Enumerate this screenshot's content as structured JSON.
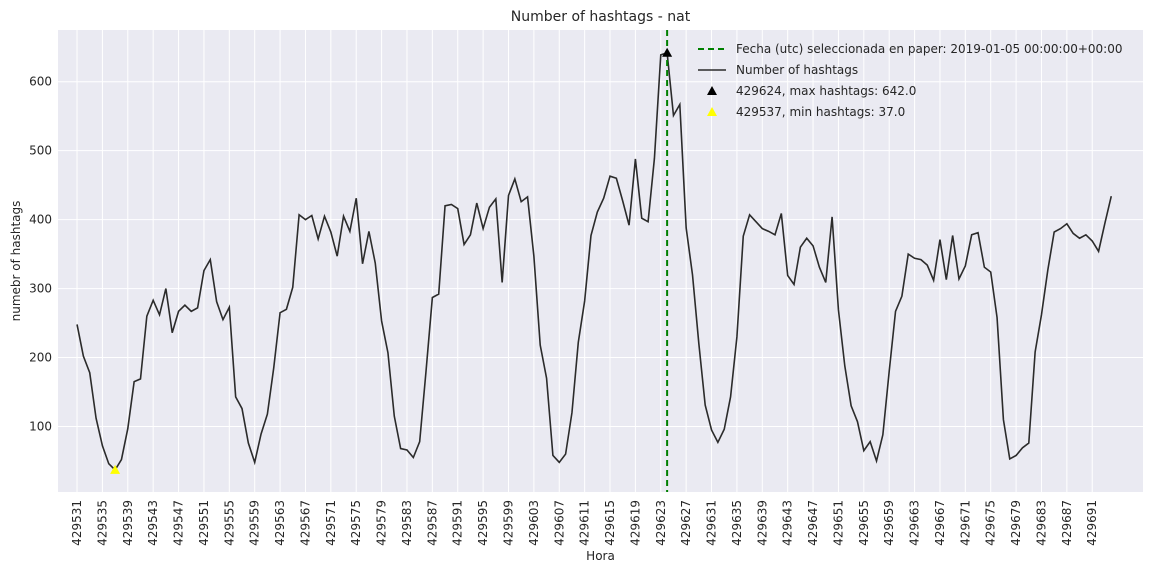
{
  "chart_data": {
    "type": "line",
    "title": "Number of hashtags - nat",
    "xlabel": "Hora",
    "ylabel": "numebr of hashtags",
    "xlim": [
      429528.0,
      429699.0
    ],
    "ylim": [
      5,
      675
    ],
    "xticks": [
      429531,
      429535,
      429539,
      429543,
      429547,
      429551,
      429555,
      429559,
      429563,
      429567,
      429571,
      429575,
      429579,
      429583,
      429587,
      429591,
      429595,
      429599,
      429603,
      429607,
      429611,
      429615,
      429619,
      429623,
      429627,
      429631,
      429635,
      429639,
      429643,
      429647,
      429651,
      429655,
      429659,
      429663,
      429667,
      429671,
      429675,
      429679,
      429683,
      429687,
      429691
    ],
    "yticks": [
      100,
      200,
      300,
      400,
      500,
      600
    ],
    "grid": true,
    "legend_position": "top-right",
    "series": [
      {
        "name": "Number of hashtags",
        "color": "#2b2b2b",
        "x_start": 429531,
        "x_step": 1,
        "values": [
          248,
          202,
          178,
          112,
          72,
          46,
          37,
          52,
          97,
          165,
          169,
          260,
          283,
          262,
          300,
          236,
          267,
          276,
          267,
          272,
          326,
          342,
          281,
          255,
          273,
          143,
          126,
          76,
          48,
          89,
          118,
          185,
          265,
          270,
          302,
          407,
          400,
          406,
          372,
          405,
          382,
          347,
          405,
          383,
          431,
          336,
          383,
          337,
          253,
          207,
          115,
          68,
          66,
          55,
          78,
          180,
          287,
          292,
          420,
          422,
          416,
          364,
          378,
          424,
          387,
          418,
          430,
          309,
          435,
          459,
          426,
          433,
          347,
          218,
          170,
          58,
          48,
          60,
          120,
          222,
          282,
          377,
          411,
          431,
          463,
          460,
          427,
          392,
          488,
          402,
          397,
          489,
          639,
          642,
          551,
          567,
          388,
          320,
          220,
          131,
          95,
          77,
          96,
          143,
          230,
          376,
          407,
          397,
          387,
          383,
          378,
          409,
          319,
          306,
          360,
          373,
          362,
          331,
          309,
          404,
          269,
          188,
          130,
          107,
          65,
          78,
          50,
          88,
          180,
          267,
          289,
          350,
          344,
          342,
          334,
          312,
          371,
          313,
          377,
          314,
          333,
          378,
          381,
          331,
          324,
          258,
          110,
          53,
          58,
          69,
          76,
          208,
          262,
          327,
          382,
          387,
          394,
          380,
          373,
          378,
          369,
          354,
          395,
          434
        ]
      }
    ],
    "vline": {
      "x": 429624,
      "color": "#008000",
      "style": "dashed",
      "label": "Fecha (utc) seleccionada en paper: 2019-01-05 00:00:00+00:00"
    },
    "markers": [
      {
        "x": 429624,
        "y": 642.0,
        "color": "#000000",
        "shape": "triangle",
        "label": "429624, max hashtags: 642.0"
      },
      {
        "x": 429537,
        "y": 37.0,
        "color": "#ffff00",
        "shape": "triangle",
        "label": "429537, min hashtags: 37.0"
      }
    ],
    "colors": {
      "plot_background": "#eaeaf2",
      "grid": "#ffffff",
      "text": "#262626"
    }
  }
}
